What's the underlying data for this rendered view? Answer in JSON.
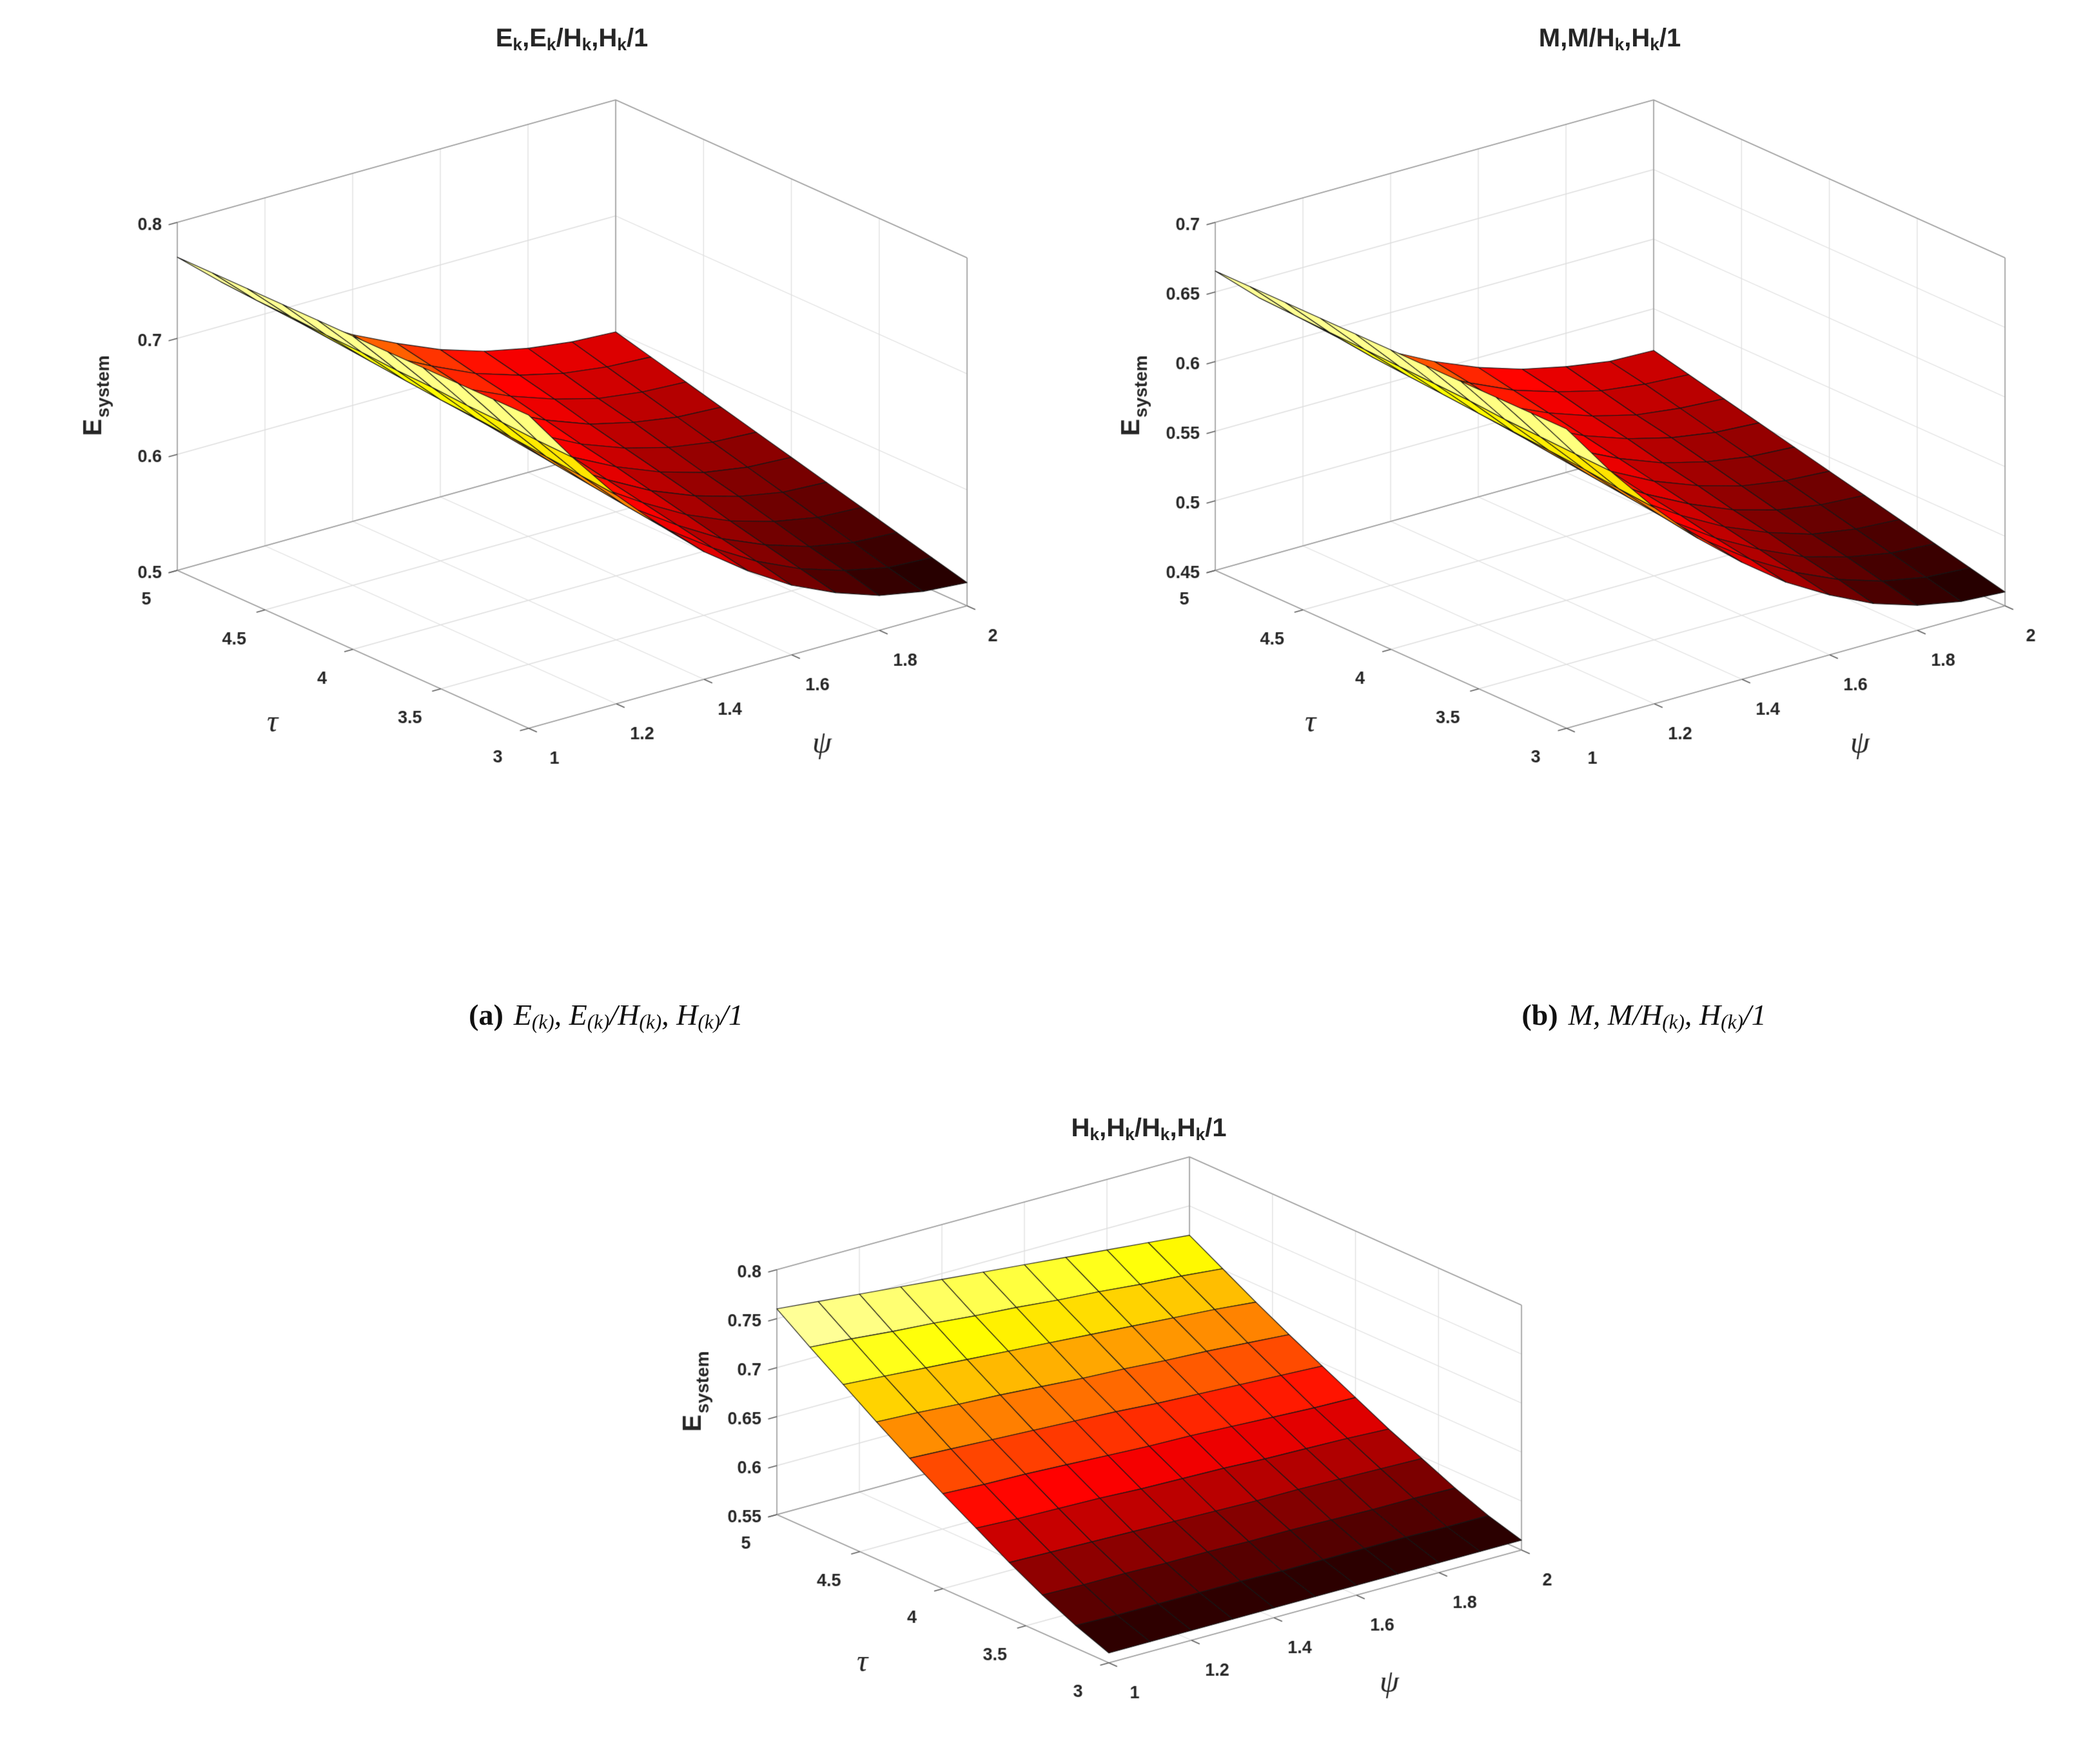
{
  "figure": {
    "background": "#ffffff",
    "surface_colormap": "hot",
    "colors": {
      "surface_low": "#1a0000",
      "surface_mid": "#ff3300",
      "surface_high": "#ffff9e",
      "grid": "#dedede",
      "box": "#999999",
      "text": "#262626"
    }
  },
  "chart_data": [
    {
      "id": "a",
      "type": "surface",
      "title": "E_k,E_k/H_k,H_k/1",
      "caption_label": "(a)",
      "caption_math": "E_{(k)}, E_{(k)}/H_{(k)}, H_{(k)}/1",
      "xlabel": "ψ",
      "ylabel": "τ",
      "zlabel": "E_{system}",
      "x_range": [
        1,
        2
      ],
      "y_range": [
        3,
        5
      ],
      "z_range": [
        0.5,
        0.8
      ],
      "x_ticks": [
        "1",
        "1.2",
        "1.4",
        "1.6",
        "1.8",
        "2"
      ],
      "y_ticks": [
        "3",
        "3.5",
        "4",
        "4.5",
        "5"
      ],
      "z_ticks": [
        "0.5",
        "0.6",
        "0.7",
        "0.8"
      ],
      "colormap": "hot",
      "x": [
        1.0,
        1.1,
        1.2,
        1.3,
        1.4,
        1.5,
        1.6,
        1.7,
        1.8,
        1.9,
        2.0
      ],
      "y": [
        3.0,
        3.2,
        3.4,
        3.6,
        3.8,
        4.0,
        4.2,
        4.4,
        4.6,
        4.8,
        5.0
      ],
      "z": [
        [
          0.77,
          0.723,
          0.68,
          0.643,
          0.61,
          0.583,
          0.56,
          0.543,
          0.53,
          0.523,
          0.52
        ],
        [
          0.77,
          0.724,
          0.683,
          0.647,
          0.615,
          0.589,
          0.567,
          0.55,
          0.538,
          0.53,
          0.528
        ],
        [
          0.77,
          0.726,
          0.686,
          0.651,
          0.62,
          0.595,
          0.573,
          0.557,
          0.545,
          0.538,
          0.536
        ],
        [
          0.77,
          0.727,
          0.689,
          0.655,
          0.625,
          0.601,
          0.58,
          0.564,
          0.553,
          0.546,
          0.544
        ],
        [
          0.77,
          0.729,
          0.692,
          0.659,
          0.63,
          0.607,
          0.587,
          0.572,
          0.561,
          0.554,
          0.552
        ],
        [
          0.77,
          0.73,
          0.694,
          0.663,
          0.636,
          0.613,
          0.594,
          0.579,
          0.568,
          0.562,
          0.56
        ],
        [
          0.77,
          0.732,
          0.697,
          0.667,
          0.641,
          0.619,
          0.6,
          0.586,
          0.576,
          0.57,
          0.568
        ],
        [
          0.77,
          0.733,
          0.7,
          0.671,
          0.646,
          0.625,
          0.607,
          0.593,
          0.584,
          0.578,
          0.576
        ],
        [
          0.77,
          0.735,
          0.703,
          0.675,
          0.651,
          0.631,
          0.614,
          0.601,
          0.591,
          0.586,
          0.584
        ],
        [
          0.77,
          0.736,
          0.706,
          0.679,
          0.656,
          0.637,
          0.62,
          0.608,
          0.599,
          0.594,
          0.592
        ],
        [
          0.77,
          0.738,
          0.709,
          0.683,
          0.661,
          0.643,
          0.627,
          0.615,
          0.607,
          0.602,
          0.6
        ]
      ]
    },
    {
      "id": "b",
      "type": "surface",
      "title": "M,M/H_k,H_k/1",
      "caption_label": "(b)",
      "caption_math": "M, M/H_{(k)}, H_{(k)}/1",
      "xlabel": "ψ",
      "ylabel": "τ",
      "zlabel": "E_{system}",
      "x_range": [
        1,
        2
      ],
      "y_range": [
        3,
        5
      ],
      "z_range": [
        0.45,
        0.7
      ],
      "x_ticks": [
        "1",
        "1.2",
        "1.4",
        "1.6",
        "1.8",
        "2"
      ],
      "y_ticks": [
        "3",
        "3.5",
        "4",
        "4.5",
        "5"
      ],
      "z_ticks": [
        "0.45",
        "0.5",
        "0.55",
        "0.6",
        "0.65",
        "0.7"
      ],
      "colormap": "hot",
      "x": [
        1.0,
        1.1,
        1.2,
        1.3,
        1.4,
        1.5,
        1.6,
        1.7,
        1.8,
        1.9,
        2.0
      ],
      "y": [
        3.0,
        3.2,
        3.4,
        3.6,
        3.8,
        4.0,
        4.2,
        4.4,
        4.6,
        4.8,
        5.0
      ],
      "z": [
        [
          0.665,
          0.626,
          0.591,
          0.56,
          0.534,
          0.511,
          0.493,
          0.478,
          0.468,
          0.462,
          0.46
        ],
        [
          0.665,
          0.627,
          0.593,
          0.564,
          0.538,
          0.516,
          0.498,
          0.484,
          0.474,
          0.468,
          0.466
        ],
        [
          0.665,
          0.628,
          0.596,
          0.567,
          0.541,
          0.52,
          0.503,
          0.489,
          0.48,
          0.474,
          0.472
        ],
        [
          0.665,
          0.629,
          0.598,
          0.57,
          0.545,
          0.525,
          0.508,
          0.495,
          0.485,
          0.48,
          0.478
        ],
        [
          0.665,
          0.631,
          0.6,
          0.573,
          0.549,
          0.529,
          0.513,
          0.5,
          0.491,
          0.486,
          0.484
        ],
        [
          0.665,
          0.632,
          0.602,
          0.576,
          0.553,
          0.534,
          0.518,
          0.506,
          0.497,
          0.492,
          0.49
        ],
        [
          0.665,
          0.633,
          0.604,
          0.579,
          0.557,
          0.538,
          0.523,
          0.511,
          0.503,
          0.498,
          0.496
        ],
        [
          0.665,
          0.634,
          0.606,
          0.582,
          0.561,
          0.543,
          0.528,
          0.517,
          0.509,
          0.504,
          0.502
        ],
        [
          0.665,
          0.635,
          0.608,
          0.585,
          0.565,
          0.547,
          0.533,
          0.522,
          0.514,
          0.51,
          0.508
        ],
        [
          0.665,
          0.636,
          0.611,
          0.588,
          0.568,
          0.552,
          0.538,
          0.528,
          0.52,
          0.516,
          0.514
        ],
        [
          0.665,
          0.637,
          0.613,
          0.591,
          0.572,
          0.556,
          0.543,
          0.533,
          0.526,
          0.521,
          0.52
        ]
      ]
    },
    {
      "id": "c",
      "type": "surface",
      "title": "H_k,H_k/H_k,H_k/1",
      "xlabel": "ψ",
      "ylabel": "τ",
      "zlabel": "E_{system}",
      "x_range": [
        1,
        2
      ],
      "y_range": [
        3,
        5
      ],
      "z_range": [
        0.55,
        0.8
      ],
      "x_ticks": [
        "1",
        "1.2",
        "1.4",
        "1.6",
        "1.8",
        "2"
      ],
      "y_ticks": [
        "3",
        "3.5",
        "4",
        "4.5",
        "5"
      ],
      "z_ticks": [
        "0.55",
        "0.6",
        "0.65",
        "0.7",
        "0.75",
        "0.8"
      ],
      "colormap": "hot",
      "x": [
        1.0,
        1.1,
        1.2,
        1.3,
        1.4,
        1.5,
        1.6,
        1.7,
        1.8,
        1.9,
        2.0
      ],
      "y": [
        3.0,
        3.2,
        3.4,
        3.6,
        3.8,
        4.0,
        4.2,
        4.4,
        4.6,
        4.8,
        5.0
      ],
      "z": [
        [
          0.56,
          0.56,
          0.56,
          0.56,
          0.56,
          0.56,
          0.56,
          0.56,
          0.56,
          0.56,
          0.56
        ],
        [
          0.573,
          0.572,
          0.572,
          0.572,
          0.572,
          0.571,
          0.571,
          0.571,
          0.571,
          0.57,
          0.57
        ],
        [
          0.589,
          0.588,
          0.588,
          0.587,
          0.587,
          0.586,
          0.586,
          0.585,
          0.584,
          0.584,
          0.583
        ],
        [
          0.607,
          0.606,
          0.605,
          0.604,
          0.603,
          0.602,
          0.601,
          0.601,
          0.6,
          0.599,
          0.598
        ],
        [
          0.627,
          0.625,
          0.624,
          0.623,
          0.621,
          0.62,
          0.619,
          0.617,
          0.616,
          0.615,
          0.613
        ],
        [
          0.647,
          0.645,
          0.644,
          0.642,
          0.64,
          0.638,
          0.637,
          0.635,
          0.633,
          0.631,
          0.63
        ],
        [
          0.668,
          0.666,
          0.664,
          0.662,
          0.66,
          0.658,
          0.655,
          0.653,
          0.651,
          0.649,
          0.647
        ],
        [
          0.69,
          0.688,
          0.685,
          0.683,
          0.68,
          0.677,
          0.675,
          0.672,
          0.67,
          0.667,
          0.664
        ],
        [
          0.713,
          0.71,
          0.707,
          0.704,
          0.701,
          0.698,
          0.695,
          0.692,
          0.689,
          0.686,
          0.682
        ],
        [
          0.736,
          0.733,
          0.729,
          0.726,
          0.722,
          0.719,
          0.715,
          0.712,
          0.708,
          0.705,
          0.701
        ],
        [
          0.76,
          0.756,
          0.752,
          0.748,
          0.744,
          0.74,
          0.736,
          0.732,
          0.728,
          0.724,
          0.72
        ]
      ]
    }
  ]
}
